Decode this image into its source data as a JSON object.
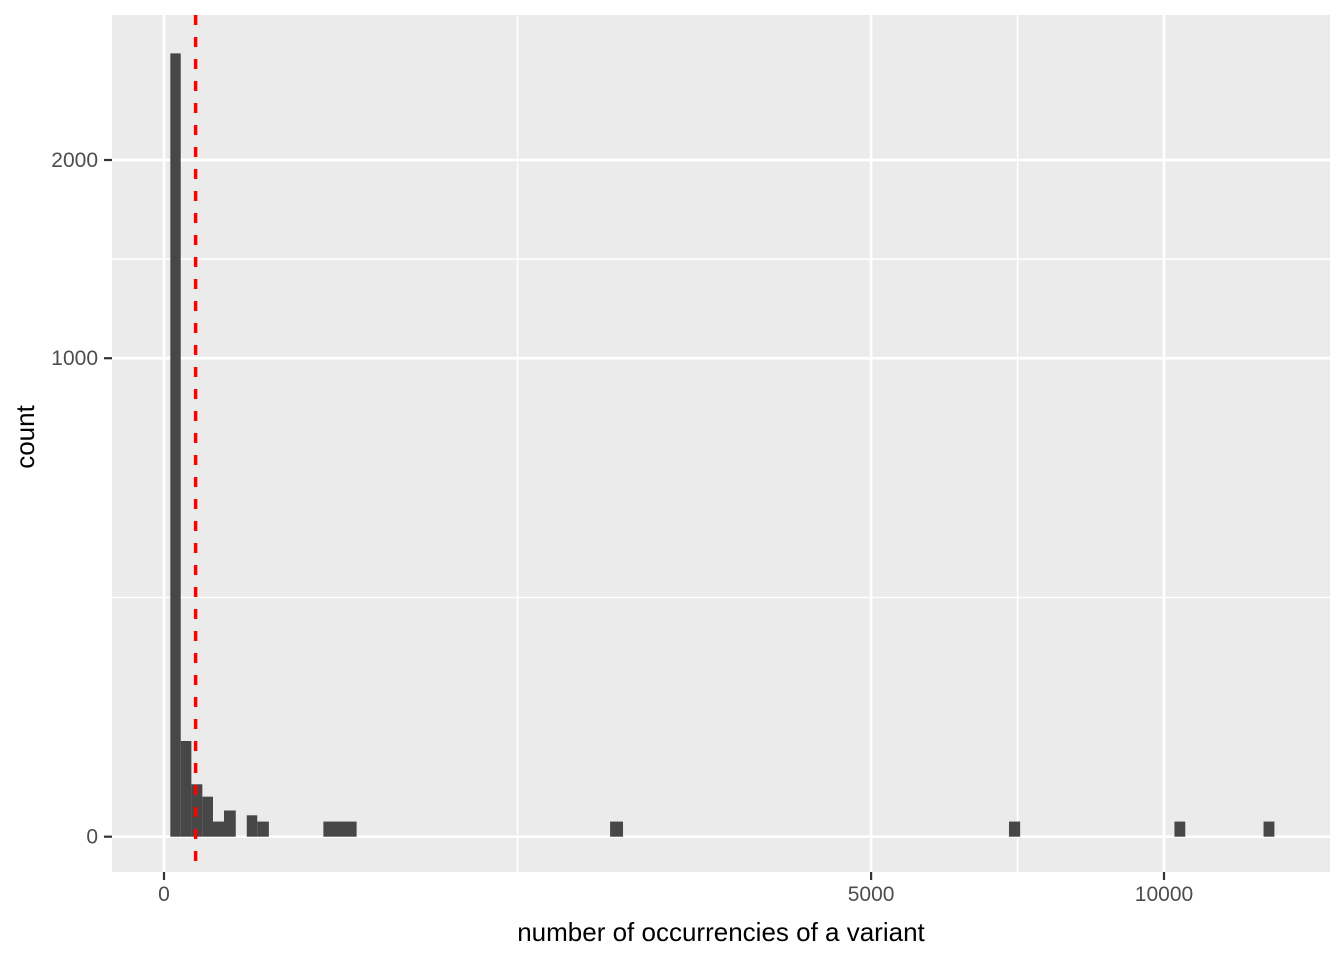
{
  "chart_data": {
    "type": "bar",
    "subtype": "histogram",
    "title": "",
    "xlabel": "number of occurrencies of a variant",
    "ylabel": "count",
    "x_scale": "sqrt",
    "y_scale": "sqrt",
    "x_ticks": [
      {
        "value": 0,
        "label": "0"
      },
      {
        "value": 5000,
        "label": "5000"
      },
      {
        "value": 10000,
        "label": "10000"
      }
    ],
    "y_ticks": [
      {
        "value": 0,
        "label": "0"
      },
      {
        "value": 1000,
        "label": "1000"
      },
      {
        "value": 2000,
        "label": "2000"
      }
    ],
    "xlim": [
      0,
      13600
    ],
    "ylim": [
      0,
      2950
    ],
    "grid": "major-and-minor-white-on-grey",
    "legend": "none",
    "bars": [
      {
        "x0": 0.4,
        "x1": 2.8,
        "count": 2680
      },
      {
        "x0": 2.8,
        "x1": 7.5,
        "count": 40
      },
      {
        "x0": 7.5,
        "x1": 14.7,
        "count": 12
      },
      {
        "x0": 14.7,
        "x1": 24,
        "count": 7
      },
      {
        "x0": 24,
        "x1": 36,
        "count": 1
      },
      {
        "x0": 36,
        "x1": 51.5,
        "count": 3
      },
      {
        "x0": 68.5,
        "x1": 87,
        "count": 2
      },
      {
        "x0": 87,
        "x1": 110,
        "count": 1
      },
      {
        "x0": 254,
        "x1": 371,
        "count": 1
      },
      {
        "x0": 1990,
        "x1": 2107,
        "count": 1
      },
      {
        "x0": 7140,
        "x1": 7330,
        "count": 1
      },
      {
        "x0": 10210,
        "x1": 10430,
        "count": 1
      },
      {
        "x0": 12090,
        "x1": 12330,
        "count": 1
      }
    ],
    "vline": {
      "x": 10,
      "color": "#FF0000",
      "linetype": "dashed"
    },
    "colors": {
      "bar_fill": "#474747",
      "panel_background": "#EBEBEB",
      "grid": "#FFFFFF",
      "tick_label": "#4D4D4D",
      "tick_mark": "#333333",
      "axis_title": "#000000",
      "outer_background": "#FFFFFF"
    }
  }
}
